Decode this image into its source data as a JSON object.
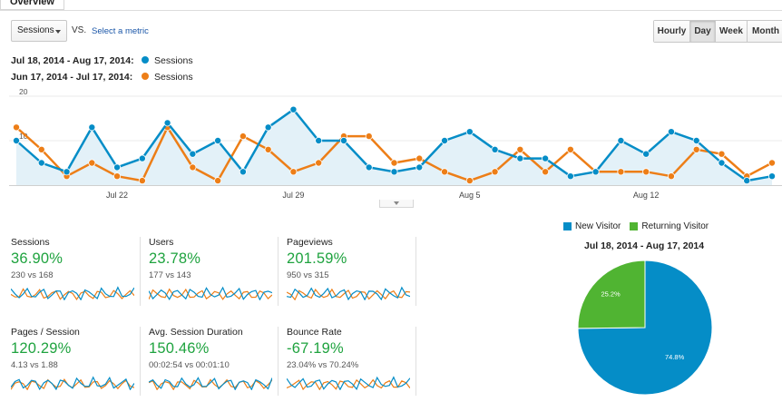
{
  "tabs": {
    "overview_label": "Overview"
  },
  "toolbar": {
    "metric_select_value": "Sessions",
    "vs_label": "VS.",
    "select_metric_label": "Select a metric",
    "granularity": [
      "Hourly",
      "Day",
      "Week",
      "Month"
    ],
    "granularity_selected": "Day"
  },
  "legend": {
    "primary": {
      "range": "Jul 18, 2014 - Aug 17, 2014:",
      "series": "Sessions",
      "color": "#058dc7"
    },
    "compare": {
      "range": "Jun 17, 2014 - Jul 17, 2014:",
      "series": "Sessions",
      "color": "#ed7e17"
    }
  },
  "chart_data": {
    "type": "line",
    "y_ticks": [
      "20",
      "10"
    ],
    "ylim": [
      0,
      20
    ],
    "x_ticks": [
      "Jul 22",
      "Jul 29",
      "Aug 5",
      "Aug 12"
    ],
    "area_fill": "#e3f1f8",
    "series": [
      {
        "name": "Sessions",
        "color": "#058dc7",
        "values": [
          10,
          5,
          3,
          13,
          4,
          6,
          14,
          7,
          10,
          3,
          13,
          17,
          10,
          10,
          4,
          3,
          4,
          10,
          12,
          8,
          6,
          6,
          2,
          3,
          10,
          7,
          12,
          10,
          5,
          1,
          2
        ]
      },
      {
        "name": "Sessions",
        "color": "#ed7e17",
        "values": [
          13,
          8,
          2,
          5,
          2,
          1,
          13,
          4,
          1,
          11,
          8,
          3,
          5,
          11,
          11,
          5,
          6,
          3,
          1,
          3,
          8,
          3,
          8,
          3,
          3,
          3,
          2,
          8,
          7,
          2,
          5
        ]
      }
    ]
  },
  "scorecards": [
    {
      "label": "Sessions",
      "pct": "36.90%",
      "cmp": "230 vs 168"
    },
    {
      "label": "Users",
      "pct": "23.78%",
      "cmp": "177 vs 143"
    },
    {
      "label": "Pageviews",
      "pct": "201.59%",
      "cmp": "950 vs 315"
    },
    {
      "label": "Pages / Session",
      "pct": "120.29%",
      "cmp": "4.13 vs 1.88"
    },
    {
      "label": "Avg. Session Duration",
      "pct": "150.46%",
      "cmp": "00:02:54 vs 00:01:10"
    },
    {
      "label": "Bounce Rate",
      "pct": "-67.19%",
      "cmp": "23.04% vs 70.24%"
    }
  ],
  "pie": {
    "legend": [
      {
        "label": "New Visitor",
        "color": "#058dc7"
      },
      {
        "label": "Returning Visitor",
        "color": "#50b432"
      }
    ],
    "title": "Jul 18, 2014 - Aug 17, 2014",
    "slices": [
      {
        "label": "New Visitor",
        "value": 74.8,
        "text": "74.8%",
        "color": "#058dc7"
      },
      {
        "label": "Returning Visitor",
        "value": 25.2,
        "text": "25.2%",
        "color": "#50b432"
      }
    ]
  }
}
